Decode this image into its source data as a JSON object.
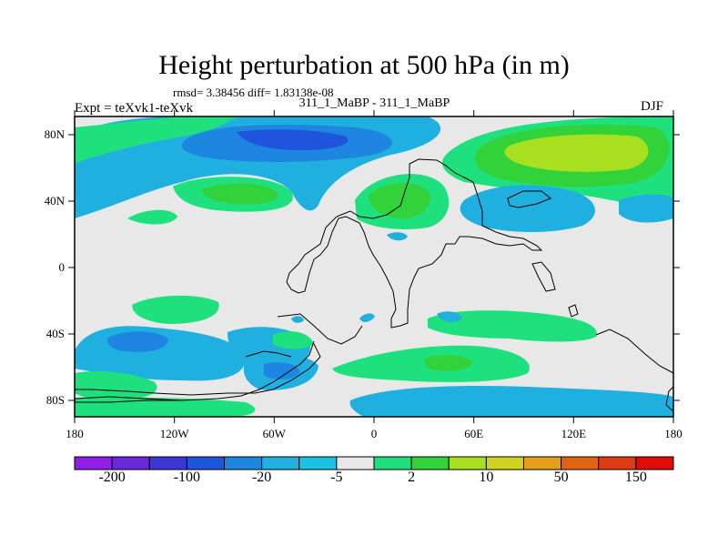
{
  "title": "Height perturbation at 500 hPa (in m)",
  "stats_line": "rmsd= 3.38456 diff= 1.83138e-08",
  "run_line": "311_1_MaBP - 311_1_MaBP",
  "experiment": "Expt = teXvk1-teXvk",
  "season": "DJF",
  "x_ticks": [
    "180",
    "120W",
    "60W",
    "0",
    "60E",
    "120E",
    "180"
  ],
  "y_ticks": [
    "80N",
    "40N",
    "0",
    "40S",
    "80S"
  ],
  "colorbar": {
    "colors": [
      "#8f1ee6",
      "#6a28dc",
      "#3a36d8",
      "#1f55dc",
      "#1e86e0",
      "#1fb0df",
      "#18c4e1",
      "#e8e8e8",
      "#1ee07c",
      "#32d23a",
      "#a8e020",
      "#d2d220",
      "#e69f18",
      "#e26412",
      "#e03a14",
      "#e00c0c"
    ],
    "labels": [
      "-200",
      "-100",
      "-20",
      "-5",
      "2",
      "10",
      "50",
      "150"
    ]
  },
  "legend_colors": {
    "background_field": "#e8e8e8",
    "neg_light": "#1fb0df",
    "neg_mid": "#1e86e0",
    "pos_light": "#1ee07c",
    "pos_mid": "#32d23a",
    "pos_high": "#a8e020"
  }
}
